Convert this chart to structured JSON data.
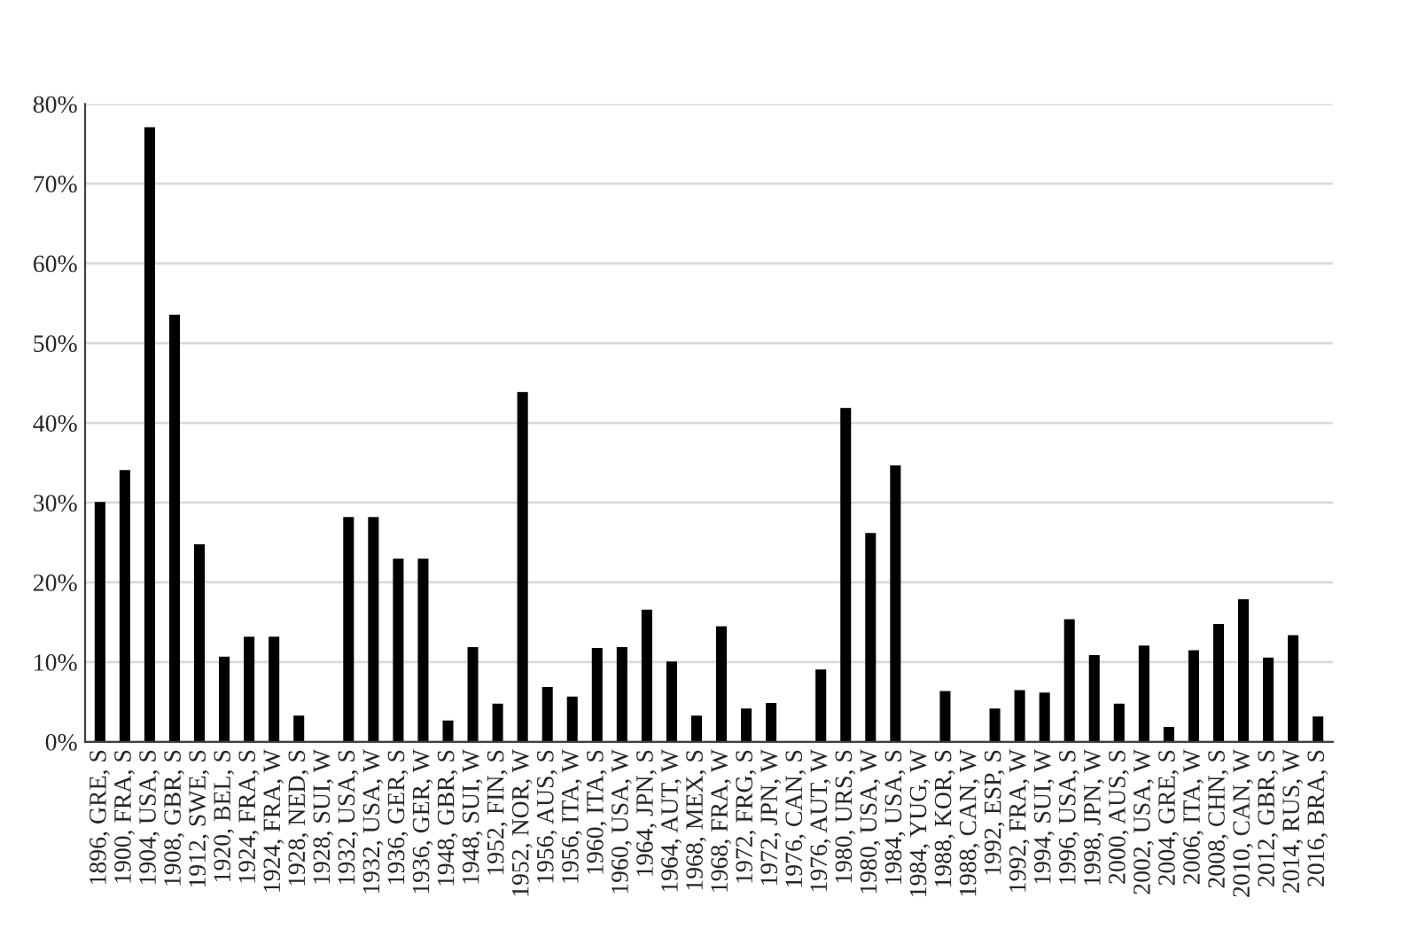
{
  "chart_data": {
    "type": "bar",
    "categories": [
      "1896, GRE, S",
      "1900, FRA, S",
      "1904, USA, S",
      "1908, GBR, S",
      "1912, SWE, S",
      "1920, BEL, S",
      "1924, FRA, S",
      "1924, FRA, W",
      "1928, NED, S",
      "1928, SUI, W",
      "1932, USA, S",
      "1932, USA, W",
      "1936, GER, S",
      "1936, GER, W",
      "1948, GBR, S",
      "1948, SUI, W",
      "1952, FIN, S",
      "1952, NOR, W",
      "1956, AUS, S",
      "1956, ITA, W",
      "1960, ITA, S",
      "1960, USA, W",
      "1964, JPN, S",
      "1964, AUT, W",
      "1968, MEX, S",
      "1968, FRA, W",
      "1972, FRG, S",
      "1972, JPN, W",
      "1976, CAN, S",
      "1976, AUT, W",
      "1980, URS, S",
      "1980, USA, W",
      "1984, USA, S",
      "1984, YUG, W",
      "1988, KOR, S",
      "1988, CAN, W",
      "1992, ESP, S",
      "1992, FRA, W",
      "1994, SUI, W",
      "1996, USA, S",
      "1998, JPN, W",
      "2000, AUS, S",
      "2002, USA, W",
      "2004, GRE, S",
      "2006, ITA, W",
      "2008, CHN, S",
      "2010, CAN, W",
      "2012, GBR, S",
      "2014, RUS, W",
      "2016, BRA, S"
    ],
    "values": [
      30,
      34,
      77,
      53.5,
      24.7,
      10.6,
      13.1,
      13.1,
      3.2,
      0,
      28.1,
      28.1,
      22.9,
      22.9,
      2.6,
      11.8,
      4.7,
      43.8,
      6.8,
      5.6,
      11.7,
      11.8,
      16.5,
      10,
      3.2,
      14.4,
      4.1,
      4.8,
      0,
      9,
      41.8,
      26.1,
      34.6,
      0,
      6.3,
      0,
      4.1,
      6.4,
      6.1,
      15.3,
      10.8,
      4.7,
      12,
      1.8,
      11.4,
      14.7,
      17.8,
      10.5,
      13.3,
      3.1
    ],
    "color": "#000000",
    "ylim": [
      0,
      80
    ],
    "yticks": [
      {
        "value": 0,
        "label": "0%"
      },
      {
        "value": 10,
        "label": "10%"
      },
      {
        "value": 20,
        "label": "20%"
      },
      {
        "value": 30,
        "label": "30%"
      },
      {
        "value": 40,
        "label": "40%"
      },
      {
        "value": 50,
        "label": "50%"
      },
      {
        "value": 60,
        "label": "60%"
      },
      {
        "value": 70,
        "label": "70%"
      },
      {
        "value": 80,
        "label": "80%"
      }
    ],
    "grid": "y",
    "legend": false
  }
}
